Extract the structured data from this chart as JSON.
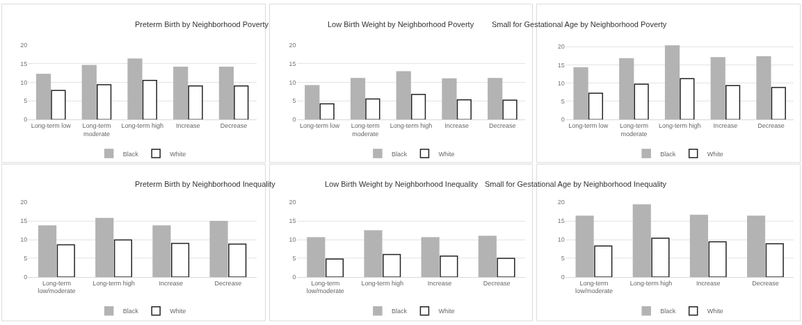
{
  "chart_data": [
    {
      "type": "bar",
      "title": "Preterm Birth by Neighborhood Poverty",
      "categories": [
        "Long-term low",
        "Long-term moderate",
        "Long-term high",
        "Increase",
        "Decrease"
      ],
      "series": [
        {
          "name": "Black",
          "color": "#b3b3b3",
          "values": [
            12.1,
            14.5,
            16.2,
            14.0,
            14.0
          ]
        },
        {
          "name": "White",
          "color": "#ffffff",
          "values": [
            7.8,
            9.3,
            10.5,
            9.0,
            9.0
          ]
        }
      ],
      "ylim": [
        0,
        20
      ],
      "yticks": [
        0,
        5,
        10,
        15,
        20
      ],
      "grid": "y",
      "legend": "bottom"
    },
    {
      "type": "bar",
      "title": "Low Birth Weight by Neighborhood Poverty",
      "categories": [
        "Long-term low",
        "Long-term moderate",
        "Long-term high",
        "Increase",
        "Decrease"
      ],
      "series": [
        {
          "name": "Black",
          "color": "#b3b3b3",
          "values": [
            9.1,
            11.0,
            12.8,
            10.9,
            11.0
          ]
        },
        {
          "name": "White",
          "color": "#ffffff",
          "values": [
            4.2,
            5.5,
            6.7,
            5.3,
            5.2
          ]
        }
      ],
      "ylim": [
        0,
        20
      ],
      "yticks": [
        0,
        5,
        10,
        15,
        20
      ],
      "grid": "y",
      "legend": "bottom"
    },
    {
      "type": "bar",
      "title": "Small for Gestational Age by Neighborhood Poverty",
      "categories": [
        "Long-term low",
        "Long-term moderate",
        "Long-term high",
        "Increase",
        "Decrease"
      ],
      "series": [
        {
          "name": "Black",
          "color": "#b3b3b3",
          "values": [
            14.2,
            16.7,
            20.2,
            17.0,
            17.2
          ]
        },
        {
          "name": "White",
          "color": "#ffffff",
          "values": [
            7.2,
            9.7,
            11.2,
            9.3,
            8.8
          ]
        }
      ],
      "ylim": [
        0,
        20.5
      ],
      "yticks": [
        0,
        5,
        10,
        15,
        20
      ],
      "grid": "y",
      "legend": "bottom"
    },
    {
      "type": "bar",
      "title": "Preterm Birth by Neighborhood Inequality",
      "categories": [
        "Long-term low/moderate",
        "Long-term high",
        "Increase",
        "Decrease"
      ],
      "series": [
        {
          "name": "Black",
          "color": "#b3b3b3",
          "values": [
            13.7,
            15.7,
            13.7,
            14.9
          ]
        },
        {
          "name": "White",
          "color": "#ffffff",
          "values": [
            8.6,
            9.9,
            9.0,
            8.8
          ]
        }
      ],
      "ylim": [
        0,
        20
      ],
      "yticks": [
        0,
        5,
        10,
        15,
        20
      ],
      "grid": "y",
      "legend": "bottom"
    },
    {
      "type": "bar",
      "title": "Low Birth Weight by Neighborhood Inequality",
      "categories": [
        "Long-term low/moderate",
        "Long-term high",
        "Increase",
        "Decrease"
      ],
      "series": [
        {
          "name": "Black",
          "color": "#b3b3b3",
          "values": [
            10.5,
            12.4,
            10.5,
            10.9
          ]
        },
        {
          "name": "White",
          "color": "#ffffff",
          "values": [
            4.8,
            6.0,
            5.6,
            5.0
          ]
        }
      ],
      "ylim": [
        0,
        20
      ],
      "yticks": [
        0,
        5,
        10,
        15,
        20
      ],
      "grid": "y",
      "legend": "bottom"
    },
    {
      "type": "bar",
      "title": "Small for Gestational Age by Neighborhood Inequality",
      "categories": [
        "Long-term low/moderate",
        "Long-term high",
        "Increase",
        "Decrease"
      ],
      "series": [
        {
          "name": "Black",
          "color": "#b3b3b3",
          "values": [
            16.3,
            19.3,
            16.5,
            16.3
          ]
        },
        {
          "name": "White",
          "color": "#ffffff",
          "values": [
            8.3,
            10.4,
            9.4,
            8.9
          ]
        }
      ],
      "ylim": [
        0,
        20
      ],
      "yticks": [
        0,
        5,
        10,
        15,
        20
      ],
      "grid": "y",
      "legend": "bottom"
    }
  ]
}
